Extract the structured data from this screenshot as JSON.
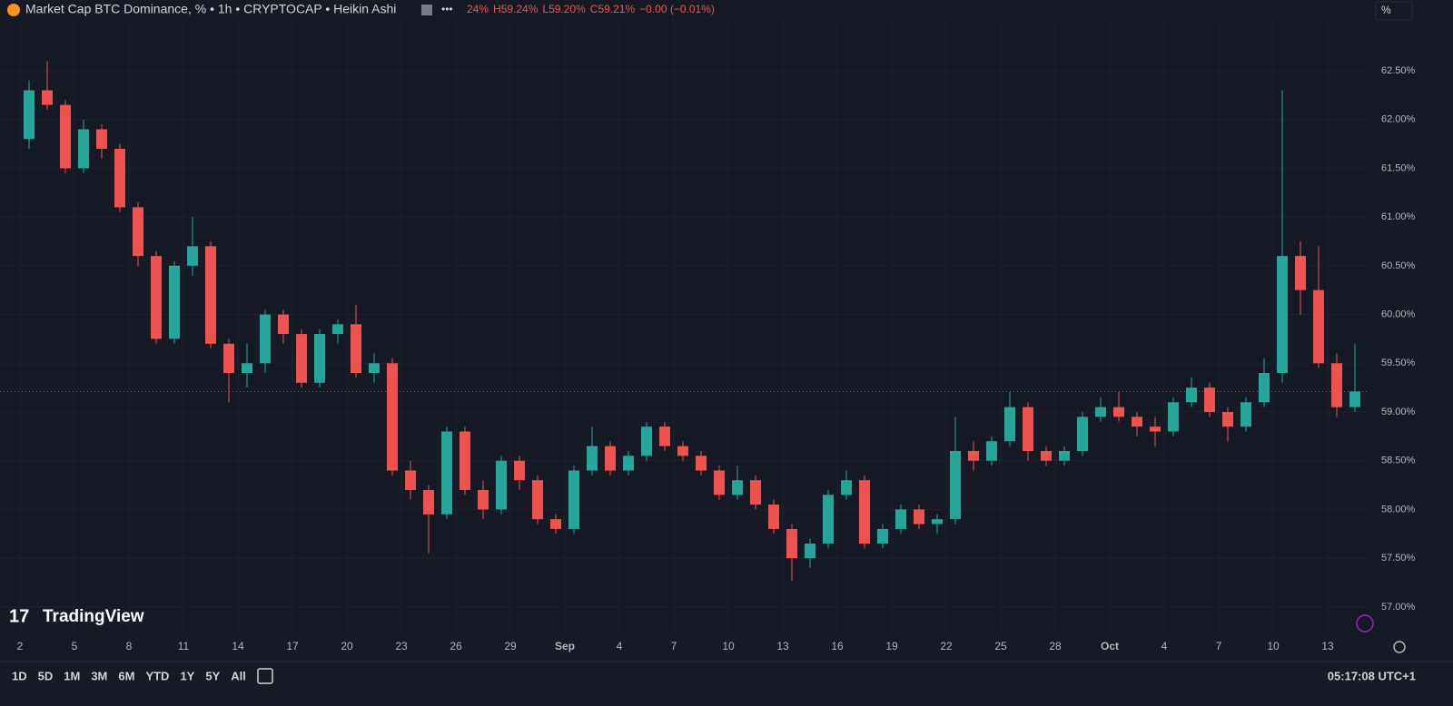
{
  "header": {
    "title": "Market Cap BTC Dominance, % • 1h • CRYPTOCAP • Heikin Ashi",
    "ohlc": [
      "24%",
      "H59.24%",
      "L59.20%",
      "C59.21%",
      "−0.00 (−0.01%)"
    ],
    "scale_button": "%"
  },
  "logo": "TradingView",
  "toolbar": {
    "ranges": [
      "1D",
      "5D",
      "1M",
      "3M",
      "6M",
      "YTD",
      "1Y",
      "5Y",
      "All"
    ],
    "clock": "05:17:08 UTC+1"
  },
  "chart_data": {
    "type": "candlestick",
    "up_color": "#26a69a",
    "down_color": "#ef5350",
    "grid": true,
    "ylim": [
      56.71,
      63.04
    ],
    "yticks": [
      {
        "value": 57,
        "label": "57.00%"
      },
      {
        "value": 57.5,
        "label": "57.50%"
      },
      {
        "value": 58,
        "label": "58.00%"
      },
      {
        "value": 58.5,
        "label": "58.50%"
      },
      {
        "value": 59,
        "label": "59.00%"
      },
      {
        "value": 59.5,
        "label": "59.50%"
      },
      {
        "value": 60,
        "label": "60.00%"
      },
      {
        "value": 60.5,
        "label": "60.50%"
      },
      {
        "value": 61,
        "label": "61.00%"
      },
      {
        "value": 61.5,
        "label": "61.50%"
      },
      {
        "value": 62,
        "label": "62.00%"
      },
      {
        "value": 62.5,
        "label": "62.50%"
      }
    ],
    "categories": [
      "2",
      null,
      null,
      "5",
      null,
      null,
      "8",
      null,
      null,
      "11",
      null,
      null,
      "14",
      null,
      null,
      "17",
      null,
      null,
      "20",
      null,
      null,
      "23",
      null,
      null,
      "26",
      null,
      null,
      "29",
      null,
      null,
      "Sep",
      null,
      null,
      "4",
      null,
      null,
      "7",
      null,
      null,
      "10",
      null,
      null,
      "13",
      null,
      null,
      "16",
      null,
      null,
      "19",
      null,
      null,
      "22",
      null,
      null,
      "25",
      null,
      null,
      "28",
      null,
      null,
      "Oct",
      null,
      null,
      "4",
      null,
      null,
      "7",
      null,
      null,
      "10",
      null,
      null,
      "13",
      null
    ],
    "open": [
      61.8,
      62.3,
      62.15,
      61.5,
      61.9,
      61.7,
      61.1,
      60.6,
      59.75,
      60.5,
      60.7,
      59.7,
      59.4,
      59.5,
      60.0,
      59.8,
      59.3,
      59.8,
      59.9,
      59.4,
      59.5,
      58.4,
      58.2,
      57.95,
      58.8,
      58.2,
      58.0,
      58.5,
      58.3,
      57.9,
      57.8,
      58.4,
      58.65,
      58.4,
      58.55,
      58.85,
      58.65,
      58.55,
      58.4,
      58.15,
      58.3,
      58.05,
      57.8,
      57.5,
      57.65,
      58.15,
      58.3,
      57.65,
      57.8,
      58.0,
      57.85,
      57.9,
      58.6,
      58.5,
      58.7,
      59.05,
      58.6,
      58.5,
      58.6,
      58.95,
      59.05,
      58.95,
      58.85,
      58.8,
      59.1,
      59.25,
      59.0,
      58.85,
      59.1,
      59.4,
      60.6,
      60.25,
      59.5,
      59.05
    ],
    "high": [
      62.4,
      62.6,
      62.2,
      62.0,
      61.95,
      61.75,
      61.15,
      60.65,
      60.55,
      61.0,
      60.75,
      59.75,
      59.7,
      60.05,
      60.05,
      59.85,
      59.85,
      59.95,
      60.1,
      59.6,
      59.55,
      58.5,
      58.25,
      58.85,
      58.85,
      58.3,
      58.55,
      58.55,
      58.35,
      57.95,
      58.45,
      58.85,
      58.7,
      58.6,
      58.9,
      58.9,
      58.7,
      58.6,
      58.45,
      58.45,
      58.35,
      58.1,
      57.85,
      57.7,
      58.2,
      58.4,
      58.35,
      57.85,
      58.05,
      58.05,
      57.95,
      58.95,
      58.7,
      58.75,
      59.2,
      59.1,
      58.65,
      58.65,
      59.0,
      59.15,
      59.2,
      59.0,
      58.95,
      59.15,
      59.35,
      59.3,
      59.05,
      59.15,
      59.55,
      62.3,
      60.75,
      60.7,
      59.6,
      59.7
    ],
    "low": [
      61.7,
      62.1,
      61.45,
      61.45,
      61.6,
      61.05,
      60.5,
      59.7,
      59.7,
      60.4,
      59.65,
      59.1,
      59.25,
      59.4,
      59.7,
      59.25,
      59.25,
      59.7,
      59.35,
      59.3,
      58.35,
      58.1,
      57.55,
      57.9,
      58.15,
      57.9,
      57.95,
      58.2,
      57.85,
      57.75,
      57.75,
      58.35,
      58.35,
      58.35,
      58.5,
      58.6,
      58.5,
      58.35,
      58.1,
      58.1,
      58.0,
      57.75,
      57.27,
      57.4,
      57.6,
      58.1,
      57.6,
      57.6,
      57.75,
      57.8,
      57.75,
      57.85,
      58.4,
      58.45,
      58.65,
      58.5,
      58.45,
      58.45,
      58.55,
      58.9,
      58.9,
      58.75,
      58.65,
      58.75,
      59.05,
      58.95,
      58.7,
      58.8,
      59.05,
      59.3,
      60.0,
      59.45,
      58.95,
      59.0
    ],
    "close": [
      62.3,
      62.15,
      61.5,
      61.9,
      61.7,
      61.1,
      60.6,
      59.75,
      60.5,
      60.7,
      59.7,
      59.4,
      59.5,
      60.0,
      59.8,
      59.3,
      59.8,
      59.9,
      59.4,
      59.5,
      58.4,
      58.2,
      57.95,
      58.8,
      58.2,
      58.0,
      58.5,
      58.3,
      57.9,
      57.8,
      58.4,
      58.65,
      58.4,
      58.55,
      58.85,
      58.65,
      58.55,
      58.4,
      58.15,
      58.3,
      58.05,
      57.8,
      57.5,
      57.65,
      58.15,
      58.3,
      57.65,
      57.8,
      58.0,
      57.85,
      57.9,
      58.6,
      58.5,
      58.7,
      59.05,
      58.6,
      58.5,
      58.6,
      58.95,
      59.05,
      58.95,
      58.85,
      58.8,
      59.1,
      59.25,
      59.0,
      58.85,
      59.1,
      59.4,
      60.6,
      60.25,
      59.5,
      59.05,
      59.21
    ]
  }
}
